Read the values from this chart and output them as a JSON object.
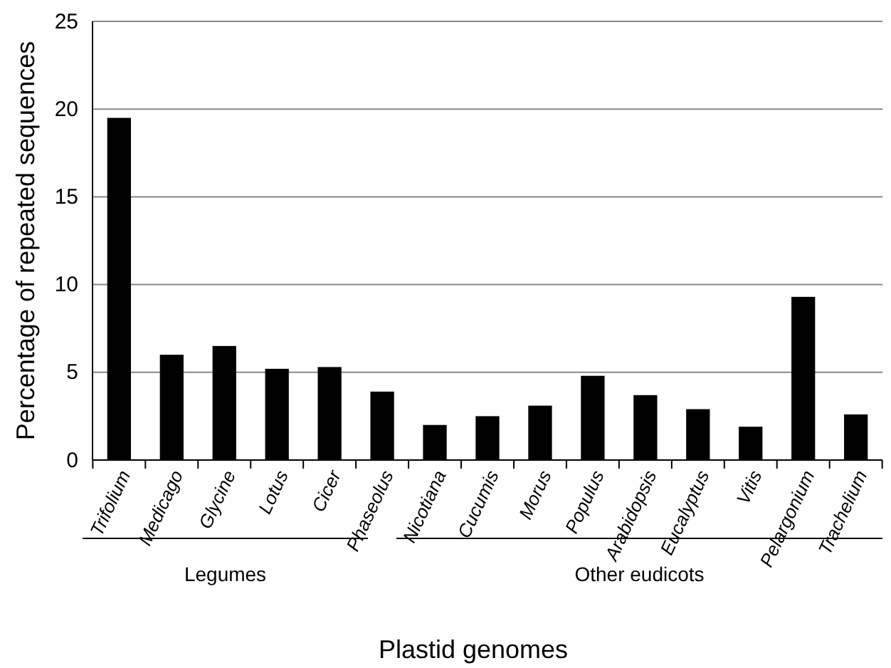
{
  "chart_data": {
    "type": "bar",
    "xlabel": "Plastid genomes",
    "ylabel": "Percentage of repeated sequences",
    "categories": [
      "Trifolium",
      "Medicago",
      "Glycine",
      "Lotus",
      "Cicer",
      "Phaseolus",
      "Nicotiana",
      "Cucumis",
      "Morus",
      "Populus",
      "Arabidopsis",
      "Eucalyptus",
      "Vitis",
      "Pelargonium",
      "Trachelium"
    ],
    "values": [
      19.5,
      6.0,
      6.5,
      5.2,
      5.3,
      3.9,
      2.0,
      2.5,
      3.1,
      4.8,
      3.7,
      2.9,
      1.9,
      9.3,
      2.6
    ],
    "color": "#000000",
    "ylim": [
      0,
      25
    ],
    "yticks": [
      0,
      5,
      10,
      15,
      20,
      25
    ],
    "grid": "y",
    "annotations": [
      "Legumes",
      "Other eudicots"
    ]
  }
}
